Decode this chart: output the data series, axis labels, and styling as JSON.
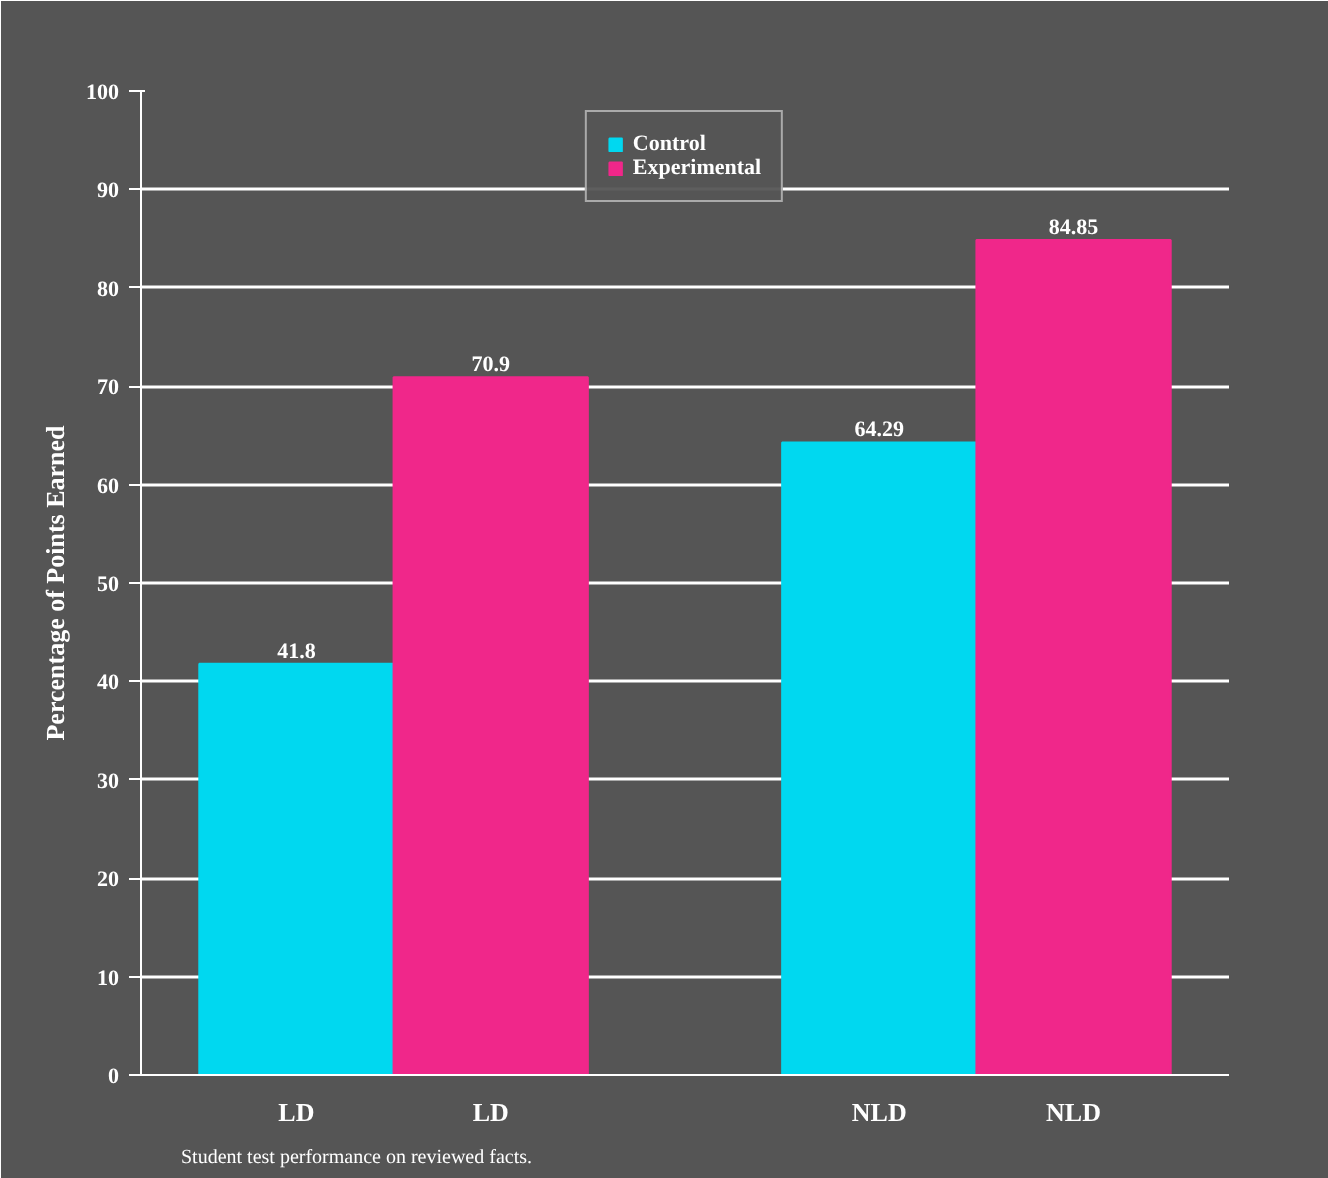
{
  "chart_data": {
    "type": "bar",
    "ylabel": "Percentage of Points Earned",
    "categories": [
      "LD",
      "LD",
      null,
      "NLD",
      "NLD"
    ],
    "series": [
      {
        "name": "Control",
        "color": "#00d8f0",
        "values": [
          41.8,
          null,
          null,
          64.29,
          null
        ]
      },
      {
        "name": "Experimental",
        "color": "#f0278a",
        "values": [
          null,
          70.9,
          null,
          null,
          84.85
        ]
      }
    ],
    "ylim": [
      0,
      100
    ],
    "yticks": [
      0,
      10,
      20,
      30,
      40,
      50,
      60,
      70,
      80,
      90,
      100
    ],
    "grid": "y",
    "legend": "top",
    "data_labels": true,
    "annotations": [
      "Student test performance on reviewed facts."
    ]
  }
}
